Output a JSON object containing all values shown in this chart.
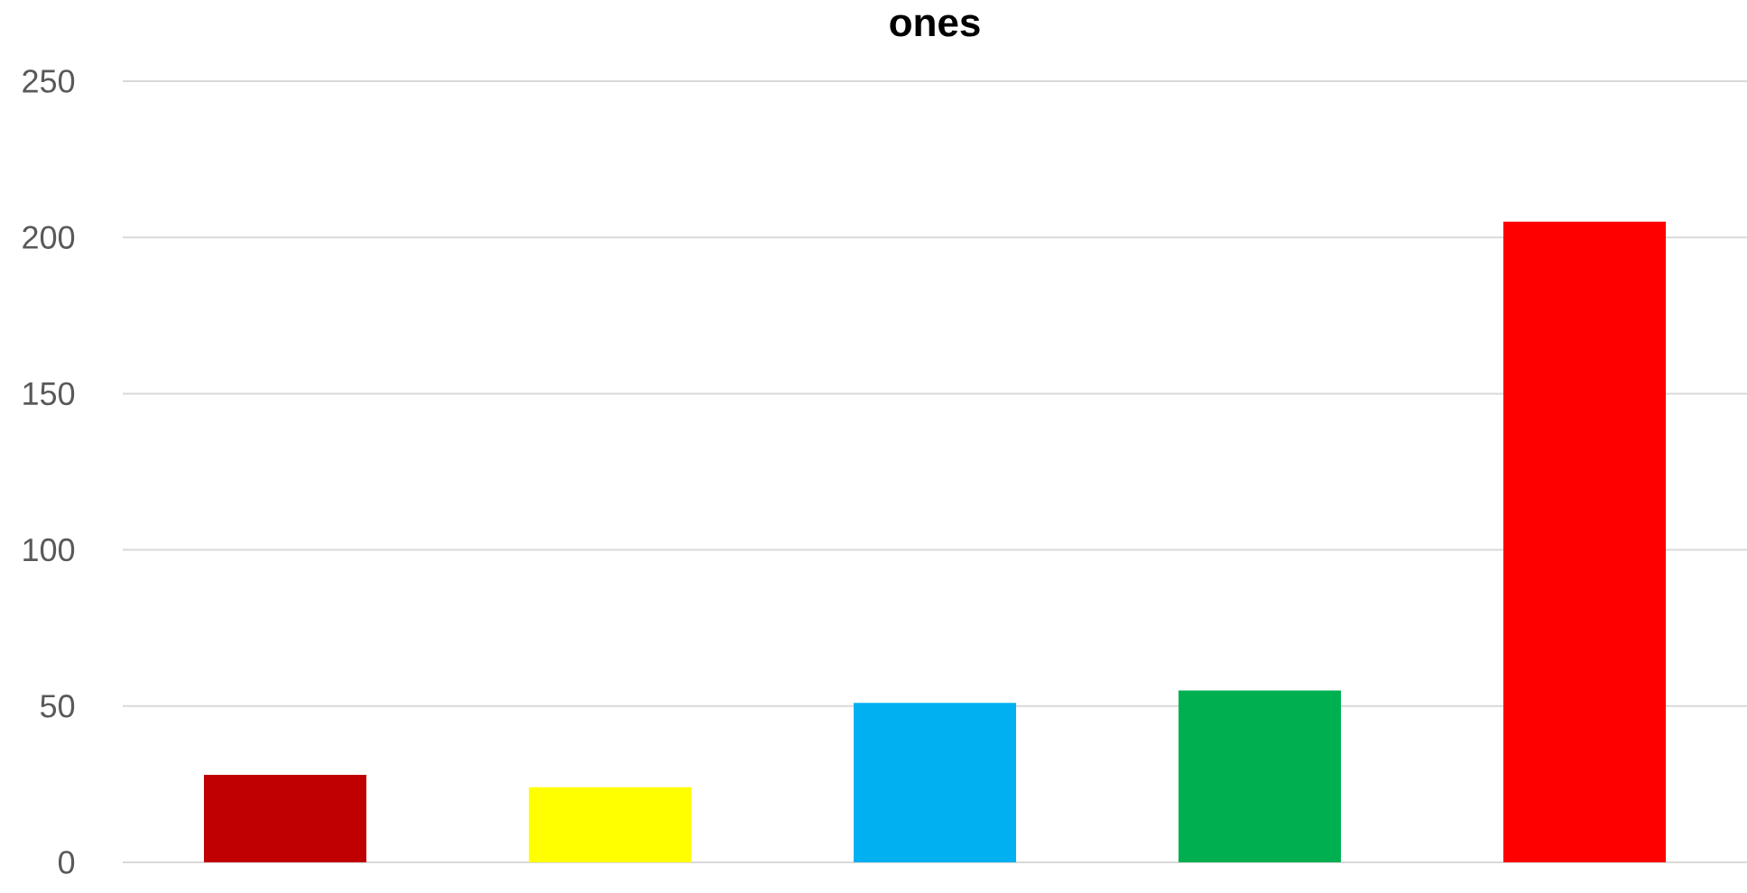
{
  "chart_data": {
    "type": "bar",
    "title": "ones",
    "categories": [
      null,
      null,
      null,
      null,
      null
    ],
    "values": [
      28,
      24,
      51,
      55,
      205
    ],
    "colors": [
      "#c00000",
      "#ffff00",
      "#00b0f0",
      "#00b050",
      "#ff0000"
    ],
    "ylim": [
      0,
      250
    ],
    "yticks": [
      0,
      50,
      100,
      150,
      200,
      250
    ],
    "grid": "y"
  }
}
